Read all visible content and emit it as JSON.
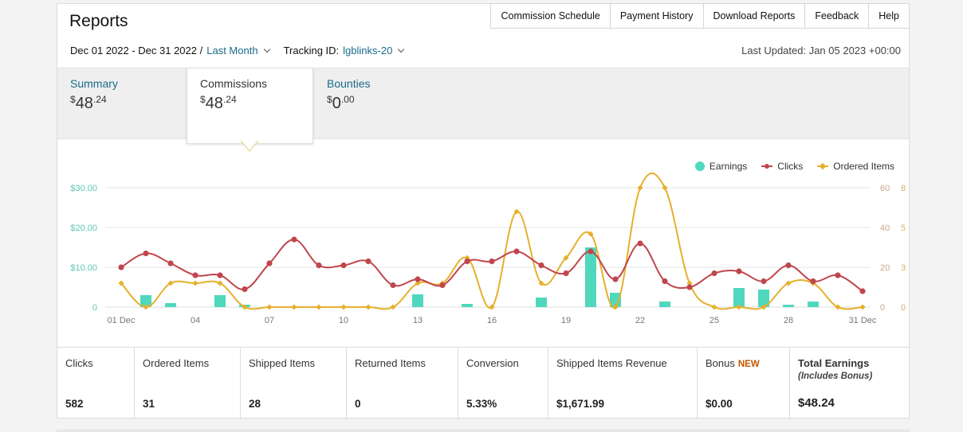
{
  "page": {
    "title": "Reports",
    "top_links": [
      "Commission Schedule",
      "Payment History",
      "Download Reports",
      "Feedback",
      "Help"
    ],
    "date_range": "Dec 01 2022 - Dec 31 2022 /",
    "period_select": "Last Month",
    "tracking_label": "Tracking ID:",
    "tracking_id": "lgblinks-20",
    "last_updated": "Last Updated: Jan 05 2023 +00:00"
  },
  "summary_tabs": [
    {
      "label": "Summary",
      "currency": "$",
      "whole": "48",
      "cents": ".24"
    },
    {
      "label": "Commissions",
      "currency": "$",
      "whole": "48",
      "cents": ".24"
    },
    {
      "label": "Bounties",
      "currency": "$",
      "whole": "0",
      "cents": ".00"
    }
  ],
  "colors": {
    "earnings": "#4fd8bd",
    "clicks": "#c0464c",
    "ordered": "#e6b02c",
    "link": "#1a6a8a",
    "new_badge": "#c45500"
  },
  "chart_data": {
    "type": "line",
    "legend": [
      "Earnings",
      "Clicks",
      "Ordered Items"
    ],
    "legend_position": "top-right",
    "x_tick_labels": [
      "01 Dec",
      "04",
      "07",
      "10",
      "13",
      "16",
      "19",
      "22",
      "25",
      "28",
      "31 Dec"
    ],
    "x_tick_days": [
      1,
      4,
      7,
      10,
      13,
      16,
      19,
      22,
      25,
      28,
      31
    ],
    "y_left_ticks": [
      "0",
      "$10.00",
      "$20.00",
      "$30.00"
    ],
    "y_left_max": 30,
    "y_mid_ticks": [
      "0",
      "20",
      "40",
      "60"
    ],
    "y_mid_max": 60,
    "y_right_ticks": [
      "0",
      "3",
      "5",
      "8"
    ],
    "y_right_max": 8,
    "grid": true,
    "series": [
      {
        "name": "Earnings",
        "axis": "left",
        "kind": "bar",
        "values": [
          0,
          3.0,
          1.0,
          0,
          3.0,
          0.6,
          0,
          0,
          0,
          0,
          0,
          0,
          3.2,
          0,
          0.8,
          0,
          0,
          2.4,
          0,
          15.0,
          3.6,
          0,
          1.4,
          0,
          0,
          4.8,
          4.4,
          0.6,
          1.4,
          0,
          0
        ]
      },
      {
        "name": "Clicks",
        "axis": "middle",
        "kind": "line",
        "values": [
          20,
          27,
          22,
          16,
          16,
          9,
          22,
          34,
          21,
          21,
          23,
          11,
          14,
          11,
          23,
          23,
          28,
          21,
          17,
          28,
          14,
          32,
          13,
          10,
          17,
          18,
          13,
          21,
          13,
          16,
          8
        ]
      },
      {
        "name": "Ordered Items",
        "axis": "right",
        "kind": "line",
        "values": [
          1.6,
          0,
          1.6,
          1.6,
          1.6,
          0,
          0,
          0,
          0,
          0,
          0,
          0,
          1.6,
          1.6,
          3.3,
          0,
          6.4,
          1.6,
          3.3,
          4.9,
          0,
          8.0,
          8.0,
          1.6,
          0,
          0,
          0,
          1.6,
          1.6,
          0,
          0
        ]
      }
    ]
  },
  "metrics": [
    {
      "label": "Clicks",
      "value": "582"
    },
    {
      "label": "Ordered Items",
      "value": "31"
    },
    {
      "label": "Shipped Items",
      "value": "28"
    },
    {
      "label": "Returned Items",
      "value": "0"
    },
    {
      "label": "Conversion",
      "value": "5.33%"
    },
    {
      "label": "Shipped Items Revenue",
      "value": "$1,671.99"
    },
    {
      "label": "Bonus",
      "badge": "NEW",
      "value": "$0.00"
    },
    {
      "label": "Total Earnings",
      "sublabel": "(Includes Bonus)",
      "value": "$48.24"
    }
  ]
}
